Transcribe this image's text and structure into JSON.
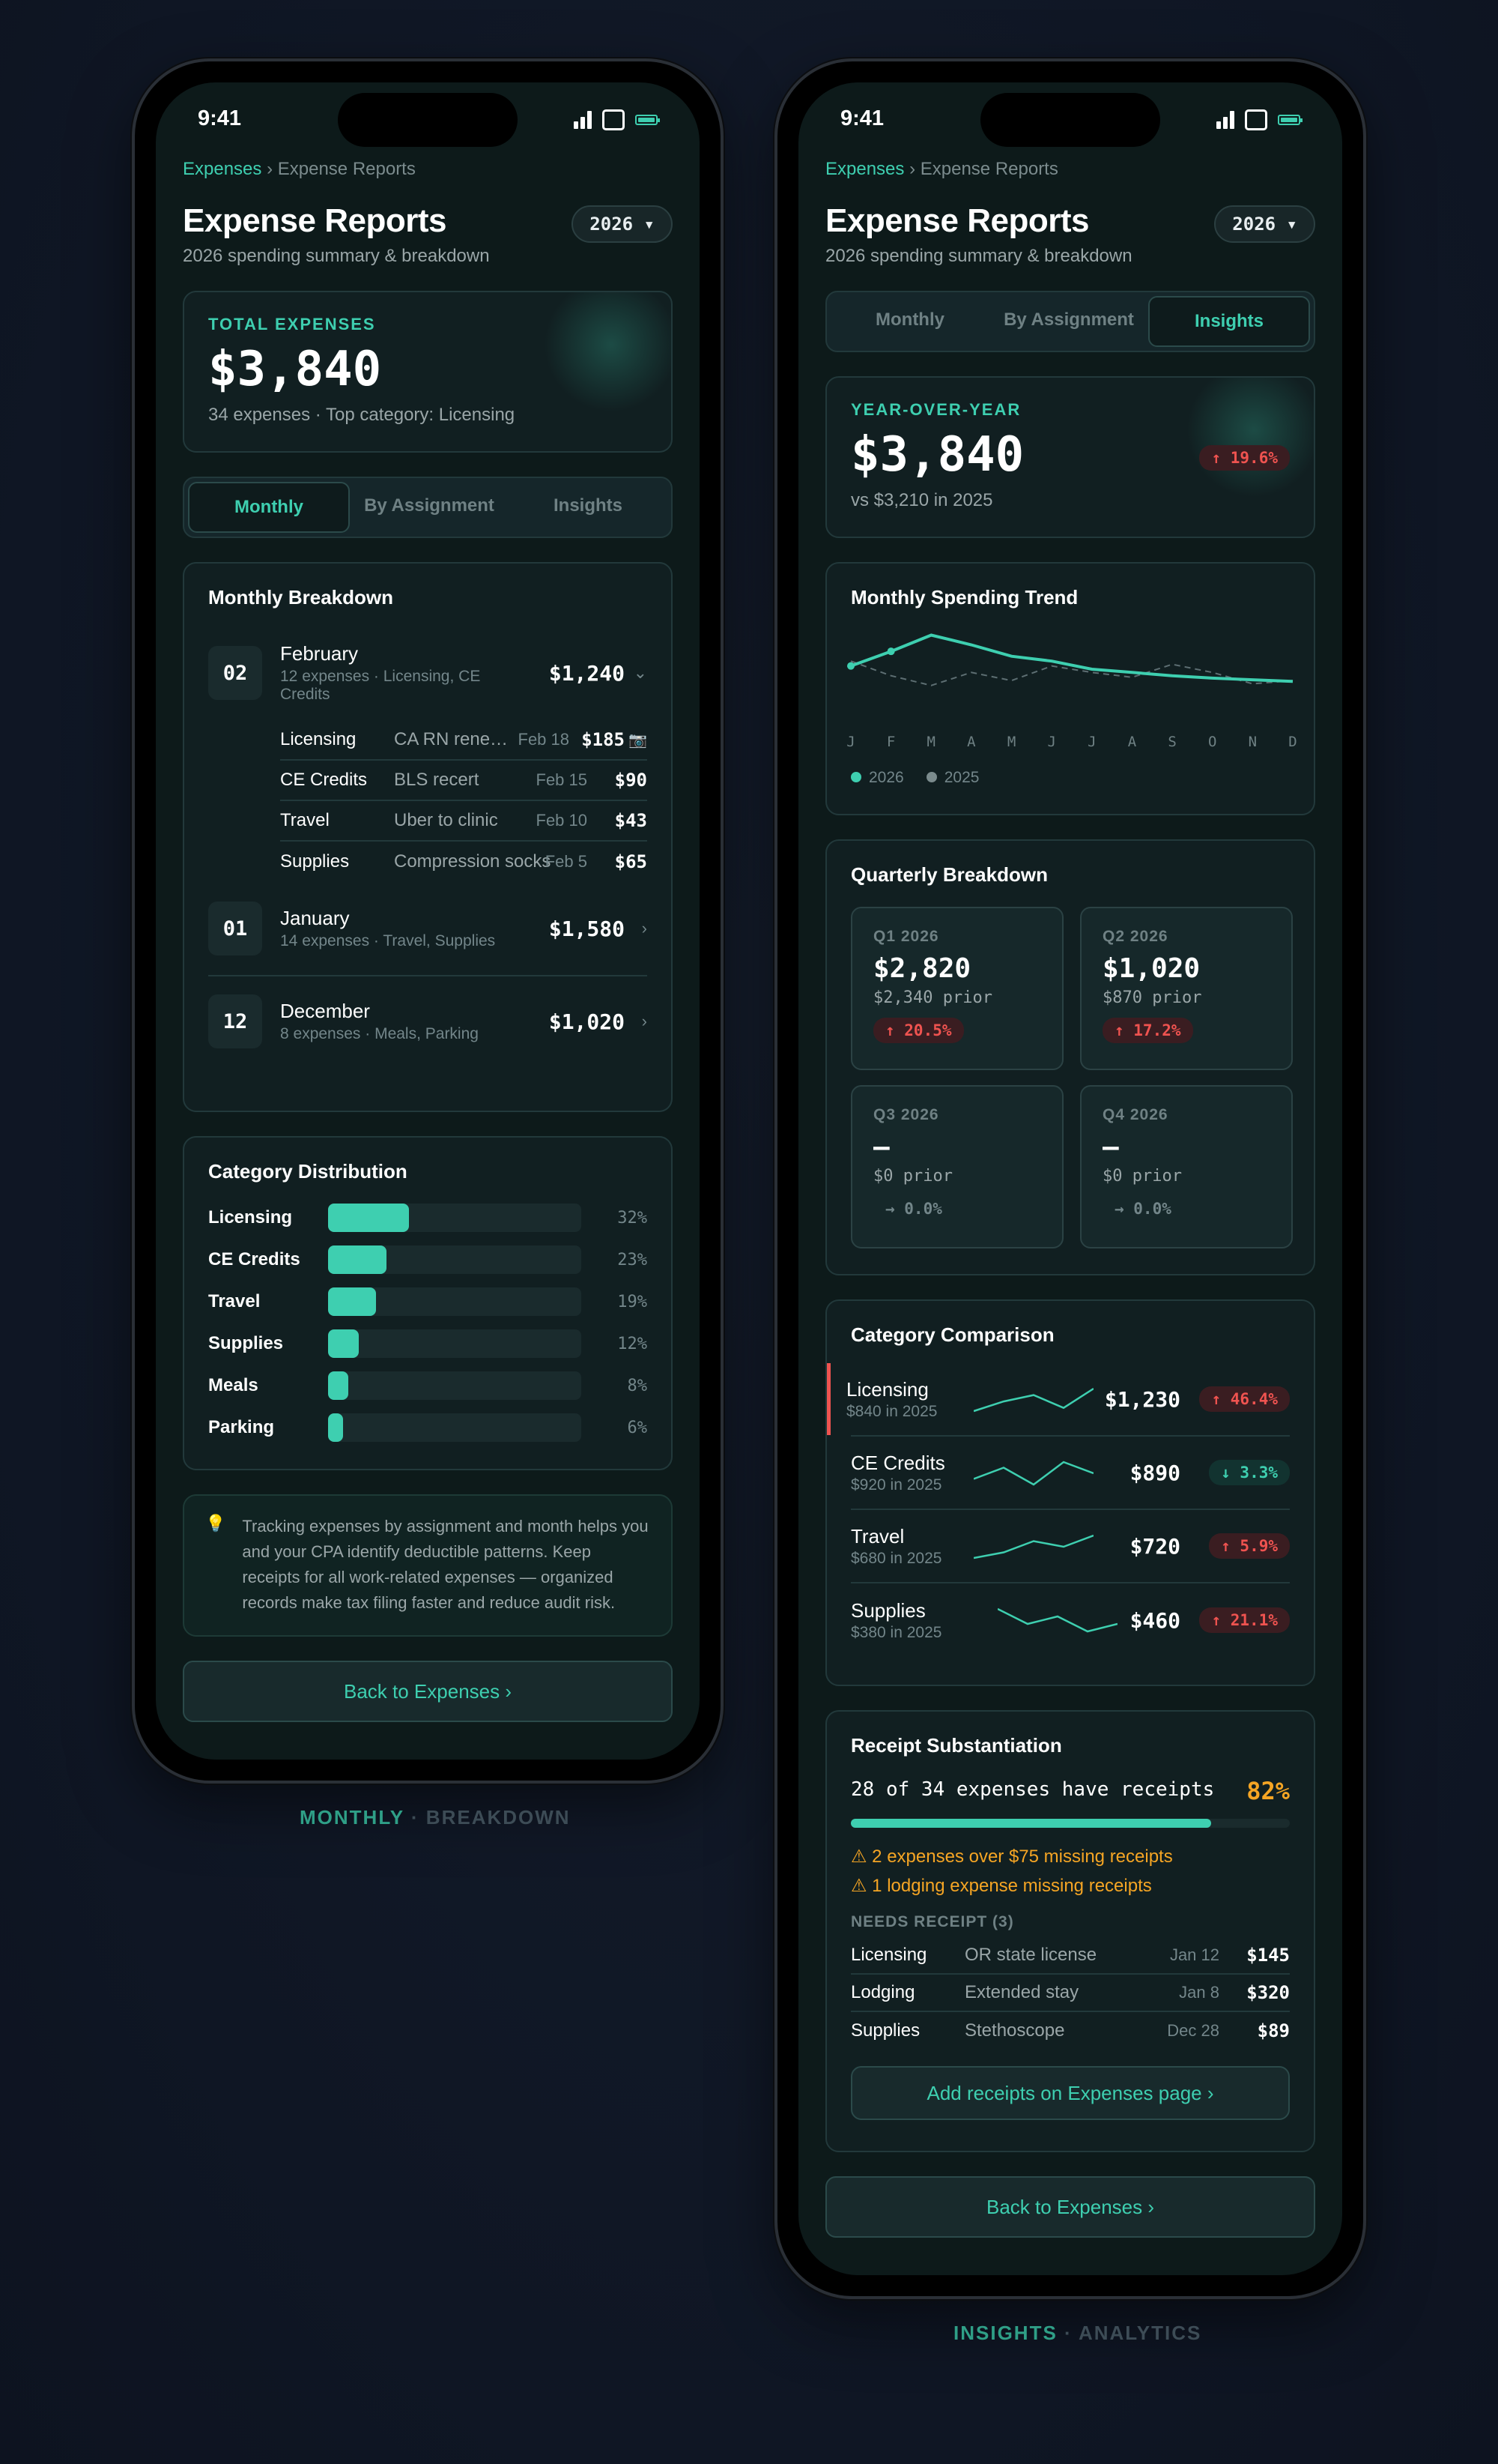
{
  "colors": {
    "accent": "#3ecfb0",
    "negative": "#ef5350",
    "warning": "#f5a524",
    "background": "#0d1a1a"
  },
  "status": {
    "time": "9:41"
  },
  "breadcrumb": {
    "root": "Expenses",
    "separator": "›",
    "current": "Expense Reports"
  },
  "header": {
    "title": "Expense Reports",
    "subtitle": "2026 spending summary & breakdown",
    "year": "2026 ▾"
  },
  "tabs": [
    {
      "label": "Monthly"
    },
    {
      "label": "By Assignment"
    },
    {
      "label": "Insights"
    }
  ],
  "monthly": {
    "total": {
      "label": "TOTAL EXPENSES",
      "amount": "$3,840",
      "summary": "34 expenses · Top category: Licensing"
    },
    "breakdown_title": "Monthly Breakdown",
    "months": [
      {
        "num": "02",
        "name": "February",
        "sub": "12 expenses · Licensing, CE Credits",
        "amount": "$1,240",
        "chevron": "⌄"
      },
      {
        "num": "01",
        "name": "January",
        "sub": "14 expenses · Travel, Supplies",
        "amount": "$1,580",
        "chevron": "›"
      },
      {
        "num": "12",
        "name": "December",
        "sub": "8 expenses · Meals, Parking",
        "amount": "$1,020",
        "chevron": "›"
      }
    ],
    "feb_items": [
      {
        "cat": "Licensing",
        "desc": "CA RN rene…",
        "date": "Feb 18",
        "amount": "$185",
        "icon": "camera-icon",
        "glyph": "📷"
      },
      {
        "cat": "CE Credits",
        "desc": "BLS recert",
        "date": "Feb 15",
        "amount": "$90"
      },
      {
        "cat": "Travel",
        "desc": "Uber to clinic",
        "date": "Feb 10",
        "amount": "$43"
      },
      {
        "cat": "Supplies",
        "desc": "Compression socks",
        "date": "Feb 5",
        "amount": "$65"
      }
    ],
    "distribution_title": "Category Distribution",
    "distribution": [
      {
        "label": "Licensing",
        "pct": 32,
        "pct_text": "32%"
      },
      {
        "label": "CE Credits",
        "pct": 23,
        "pct_text": "23%"
      },
      {
        "label": "Travel",
        "pct": 19,
        "pct_text": "19%"
      },
      {
        "label": "Supplies",
        "pct": 12,
        "pct_text": "12%"
      },
      {
        "label": "Meals",
        "pct": 8,
        "pct_text": "8%"
      },
      {
        "label": "Parking",
        "pct": 6,
        "pct_text": "6%"
      }
    ],
    "tip": {
      "icon": "lightbulb-icon",
      "glyph": "💡",
      "text": "Tracking expenses by assignment and month helps you and your CPA identify deductible patterns. Keep receipts for all work-related expenses — organized records make tax filing faster and reduce audit risk."
    },
    "back_button": "Back to Expenses ›"
  },
  "insights": {
    "yoy": {
      "label": "YEAR-OVER-YEAR",
      "amount": "$3,840",
      "compare": "vs $3,210 in 2025",
      "change": "↑ 19.6%"
    },
    "trend": {
      "title": "Monthly Spending Trend",
      "months": [
        "J",
        "F",
        "M",
        "A",
        "M",
        "J",
        "J",
        "A",
        "S",
        "O",
        "N",
        "D"
      ],
      "series_2026": [
        640,
        820,
        1020,
        900,
        760,
        700,
        600,
        560,
        520,
        490,
        470,
        450
      ],
      "series_2025": [
        700,
        520,
        400,
        560,
        460,
        640,
        560,
        500,
        660,
        560,
        420,
        460
      ],
      "legend": [
        {
          "label": "2026",
          "color": "#3ecfb0"
        },
        {
          "label": "2025",
          "color": "#7b8b8d"
        }
      ]
    },
    "quarterly": {
      "title": "Quarterly Breakdown",
      "quarters": [
        {
          "label": "Q1 2026",
          "value": "$2,820",
          "prior": "$2,340 prior",
          "change": "↑ 20.5%",
          "dir": "up"
        },
        {
          "label": "Q2 2026",
          "value": "$1,020",
          "prior": "$870 prior",
          "change": "↑ 17.2%",
          "dir": "up"
        },
        {
          "label": "Q3 2026",
          "value": "—",
          "prior": "$0 prior",
          "change": "→ 0.0%",
          "dir": "flat"
        },
        {
          "label": "Q4 2026",
          "value": "—",
          "prior": "$0 prior",
          "change": "→ 0.0%",
          "dir": "flat"
        }
      ]
    },
    "comparison": {
      "title": "Category Comparison",
      "rows": [
        {
          "name": "Licensing",
          "sub": "$840 in 2025",
          "amount": "$1,230",
          "change": "↑ 46.4%",
          "dir": "up",
          "spark": [
            3,
            6,
            8,
            4,
            10
          ]
        },
        {
          "name": "CE Credits",
          "sub": "$920 in 2025",
          "amount": "$890",
          "change": "↓ 3.3%",
          "dir": "down",
          "spark": [
            5,
            7,
            4,
            8,
            6
          ]
        },
        {
          "name": "Travel",
          "sub": "$680 in 2025",
          "amount": "$720",
          "change": "↑ 5.9%",
          "dir": "up",
          "spark": [
            4,
            5,
            7,
            6,
            8
          ]
        },
        {
          "name": "Supplies",
          "sub": "$380 in 2025",
          "amount": "$460",
          "change": "↑ 21.1%",
          "dir": "up",
          "spark": [
            7,
            5,
            6,
            4,
            5
          ]
        }
      ]
    },
    "receipts": {
      "title": "Receipt Substantiation",
      "summary": "28 of 34 expenses have receipts",
      "pct_text": "82%",
      "pct": 82,
      "warnings": [
        "⚠ 2 expenses over $75 missing receipts",
        "⚠ 1 lodging expense missing receipts"
      ],
      "needs_label": "NEEDS RECEIPT (3)",
      "items": [
        {
          "cat": "Licensing",
          "desc": "OR state license",
          "date": "Jan 12",
          "amount": "$145"
        },
        {
          "cat": "Lodging",
          "desc": "Extended stay",
          "date": "Jan 8",
          "amount": "$320"
        },
        {
          "cat": "Supplies",
          "desc": "Stethoscope",
          "date": "Dec 28",
          "amount": "$89"
        }
      ],
      "add_button": "Add receipts on Expenses page ›"
    },
    "back_button": "Back to Expenses ›"
  },
  "captions": {
    "left": {
      "main": "MONTHLY",
      "sep": " · ",
      "rest": "BREAKDOWN"
    },
    "right": {
      "main": "INSIGHTS",
      "sep": " · ",
      "rest": "ANALYTICS"
    }
  }
}
